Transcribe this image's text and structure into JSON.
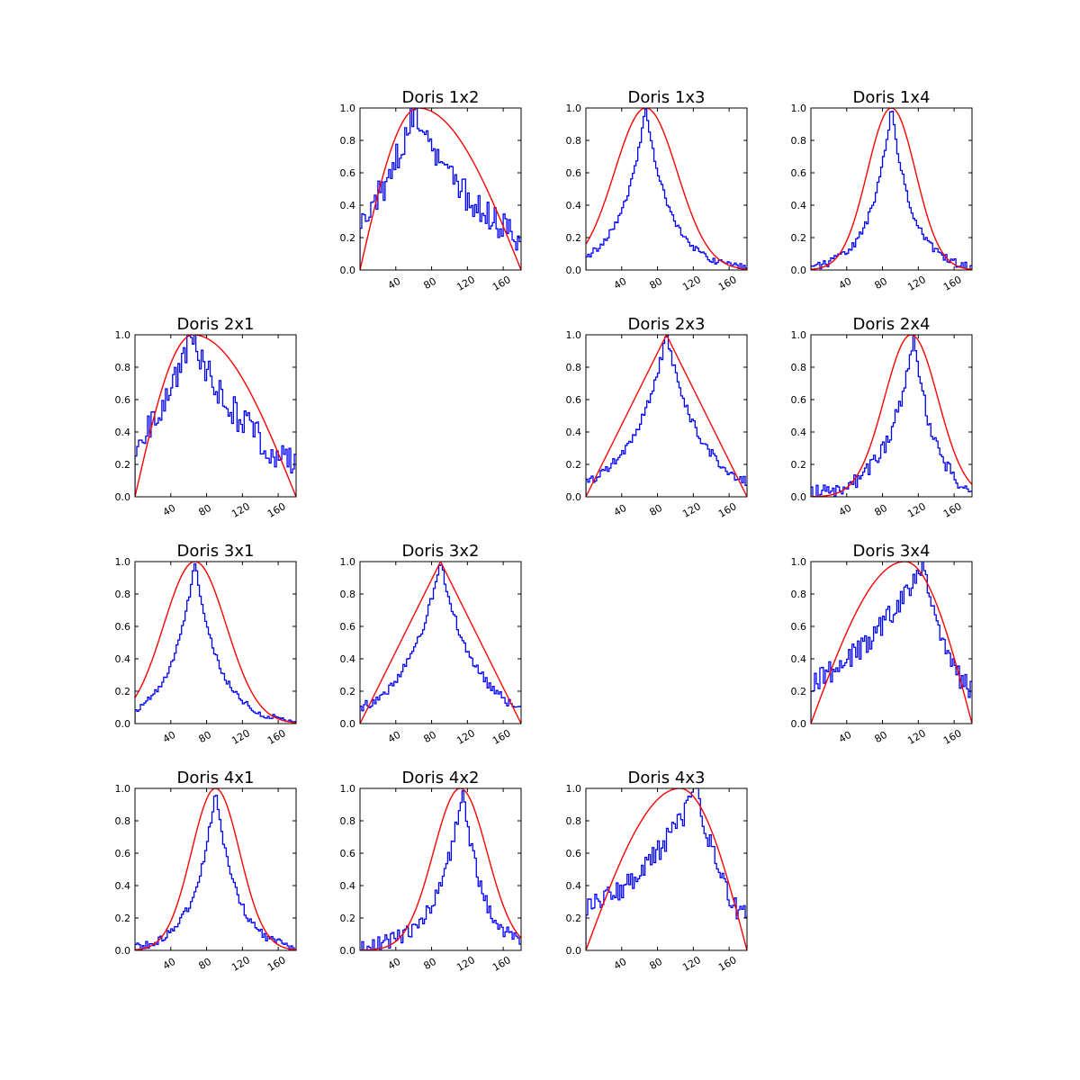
{
  "colors": {
    "histogram": "#0000ff",
    "fit": "#ff0000",
    "axes": "#000000",
    "background": "#ffffff"
  },
  "axes_common": {
    "xlim": [
      0,
      180
    ],
    "ylim": [
      0,
      1.0
    ],
    "x_ticks": [
      40,
      80,
      120,
      160
    ],
    "x_tick_labels": [
      "40",
      "80",
      "120",
      "160"
    ],
    "y_ticks": [
      0.0,
      0.2,
      0.4,
      0.6,
      0.8,
      1.0
    ],
    "y_tick_labels": [
      "0.0",
      "0.2",
      "0.4",
      "0.6",
      "0.8",
      "1.0"
    ],
    "x_tick_label_rotation_deg": 30,
    "grid": false
  },
  "chart_data": [
    {
      "type": "line",
      "title": "Doris 1x2",
      "row": 1,
      "col": 2,
      "fit": {
        "shape": "sine",
        "peak_x": 65,
        "end_x": 180
      },
      "histogram": {
        "peak_x": 62,
        "width_left": 55,
        "width_right": 75,
        "bin": 2,
        "noise": 0.1,
        "seed": 12
      }
    },
    {
      "type": "line",
      "title": "Doris 1x3",
      "row": 1,
      "col": 3,
      "fit": {
        "shape": "gauss",
        "peak_x": 67,
        "sigma": 35
      },
      "histogram": {
        "peak_x": 67,
        "width_left": 27,
        "width_right": 27,
        "bin": 2,
        "noise": 0.02,
        "seed": 13
      }
    },
    {
      "type": "line",
      "title": "Doris 1x4",
      "row": 1,
      "col": 4,
      "fit": {
        "shape": "gauss",
        "peak_x": 90,
        "sigma": 27
      },
      "histogram": {
        "peak_x": 90,
        "width_left": 23,
        "width_right": 23,
        "bin": 2,
        "noise": 0.025,
        "seed": 14
      }
    },
    {
      "type": "line",
      "title": "Doris 2x1",
      "row": 2,
      "col": 1,
      "fit": {
        "shape": "sine",
        "peak_x": 65,
        "end_x": 180
      },
      "histogram": {
        "peak_x": 62,
        "width_left": 55,
        "width_right": 75,
        "bin": 2,
        "noise": 0.1,
        "seed": 21
      }
    },
    {
      "type": "line",
      "title": "Doris 2x3",
      "row": 2,
      "col": 3,
      "fit": {
        "shape": "triangle",
        "peak_x": 90,
        "end_x": 180
      },
      "histogram": {
        "peak_x": 90,
        "width_left": 38,
        "width_right": 38,
        "bin": 2,
        "noise": 0.03,
        "seed": 23
      }
    },
    {
      "type": "line",
      "title": "Doris 2x4",
      "row": 2,
      "col": 4,
      "fit": {
        "shape": "gauss",
        "peak_x": 112,
        "sigma": 30
      },
      "histogram": {
        "peak_x": 115,
        "width_left": 28,
        "width_right": 22,
        "bin": 2,
        "noise": 0.05,
        "seed": 24
      }
    },
    {
      "type": "line",
      "title": "Doris 3x1",
      "row": 3,
      "col": 1,
      "fit": {
        "shape": "gauss",
        "peak_x": 67,
        "sigma": 35
      },
      "histogram": {
        "peak_x": 67,
        "width_left": 27,
        "width_right": 27,
        "bin": 2,
        "noise": 0.02,
        "seed": 31
      }
    },
    {
      "type": "line",
      "title": "Doris 3x2",
      "row": 3,
      "col": 2,
      "fit": {
        "shape": "triangle",
        "peak_x": 90,
        "end_x": 180
      },
      "histogram": {
        "peak_x": 90,
        "width_left": 38,
        "width_right": 38,
        "bin": 2,
        "noise": 0.03,
        "seed": 32
      }
    },
    {
      "type": "line",
      "title": "Doris 3x4",
      "row": 3,
      "col": 4,
      "fit": {
        "shape": "sine",
        "peak_x": 105,
        "end_x": 180
      },
      "histogram": {
        "peak_x": 125,
        "width_left": 90,
        "width_right": 33,
        "bin": 2,
        "noise": 0.07,
        "seed": 34
      }
    },
    {
      "type": "line",
      "title": "Doris 4x1",
      "row": 4,
      "col": 1,
      "fit": {
        "shape": "gauss",
        "peak_x": 90,
        "sigma": 27
      },
      "histogram": {
        "peak_x": 90,
        "width_left": 23,
        "width_right": 23,
        "bin": 2,
        "noise": 0.025,
        "seed": 41
      }
    },
    {
      "type": "line",
      "title": "Doris 4x2",
      "row": 4,
      "col": 2,
      "fit": {
        "shape": "gauss",
        "peak_x": 112,
        "sigma": 30
      },
      "histogram": {
        "peak_x": 115,
        "width_left": 28,
        "width_right": 22,
        "bin": 2,
        "noise": 0.05,
        "seed": 42
      }
    },
    {
      "type": "line",
      "title": "Doris 4x3",
      "row": 4,
      "col": 3,
      "fit": {
        "shape": "sine",
        "peak_x": 105,
        "end_x": 180
      },
      "histogram": {
        "peak_x": 125,
        "width_left": 90,
        "width_right": 33,
        "bin": 2,
        "noise": 0.07,
        "seed": 43
      }
    }
  ]
}
